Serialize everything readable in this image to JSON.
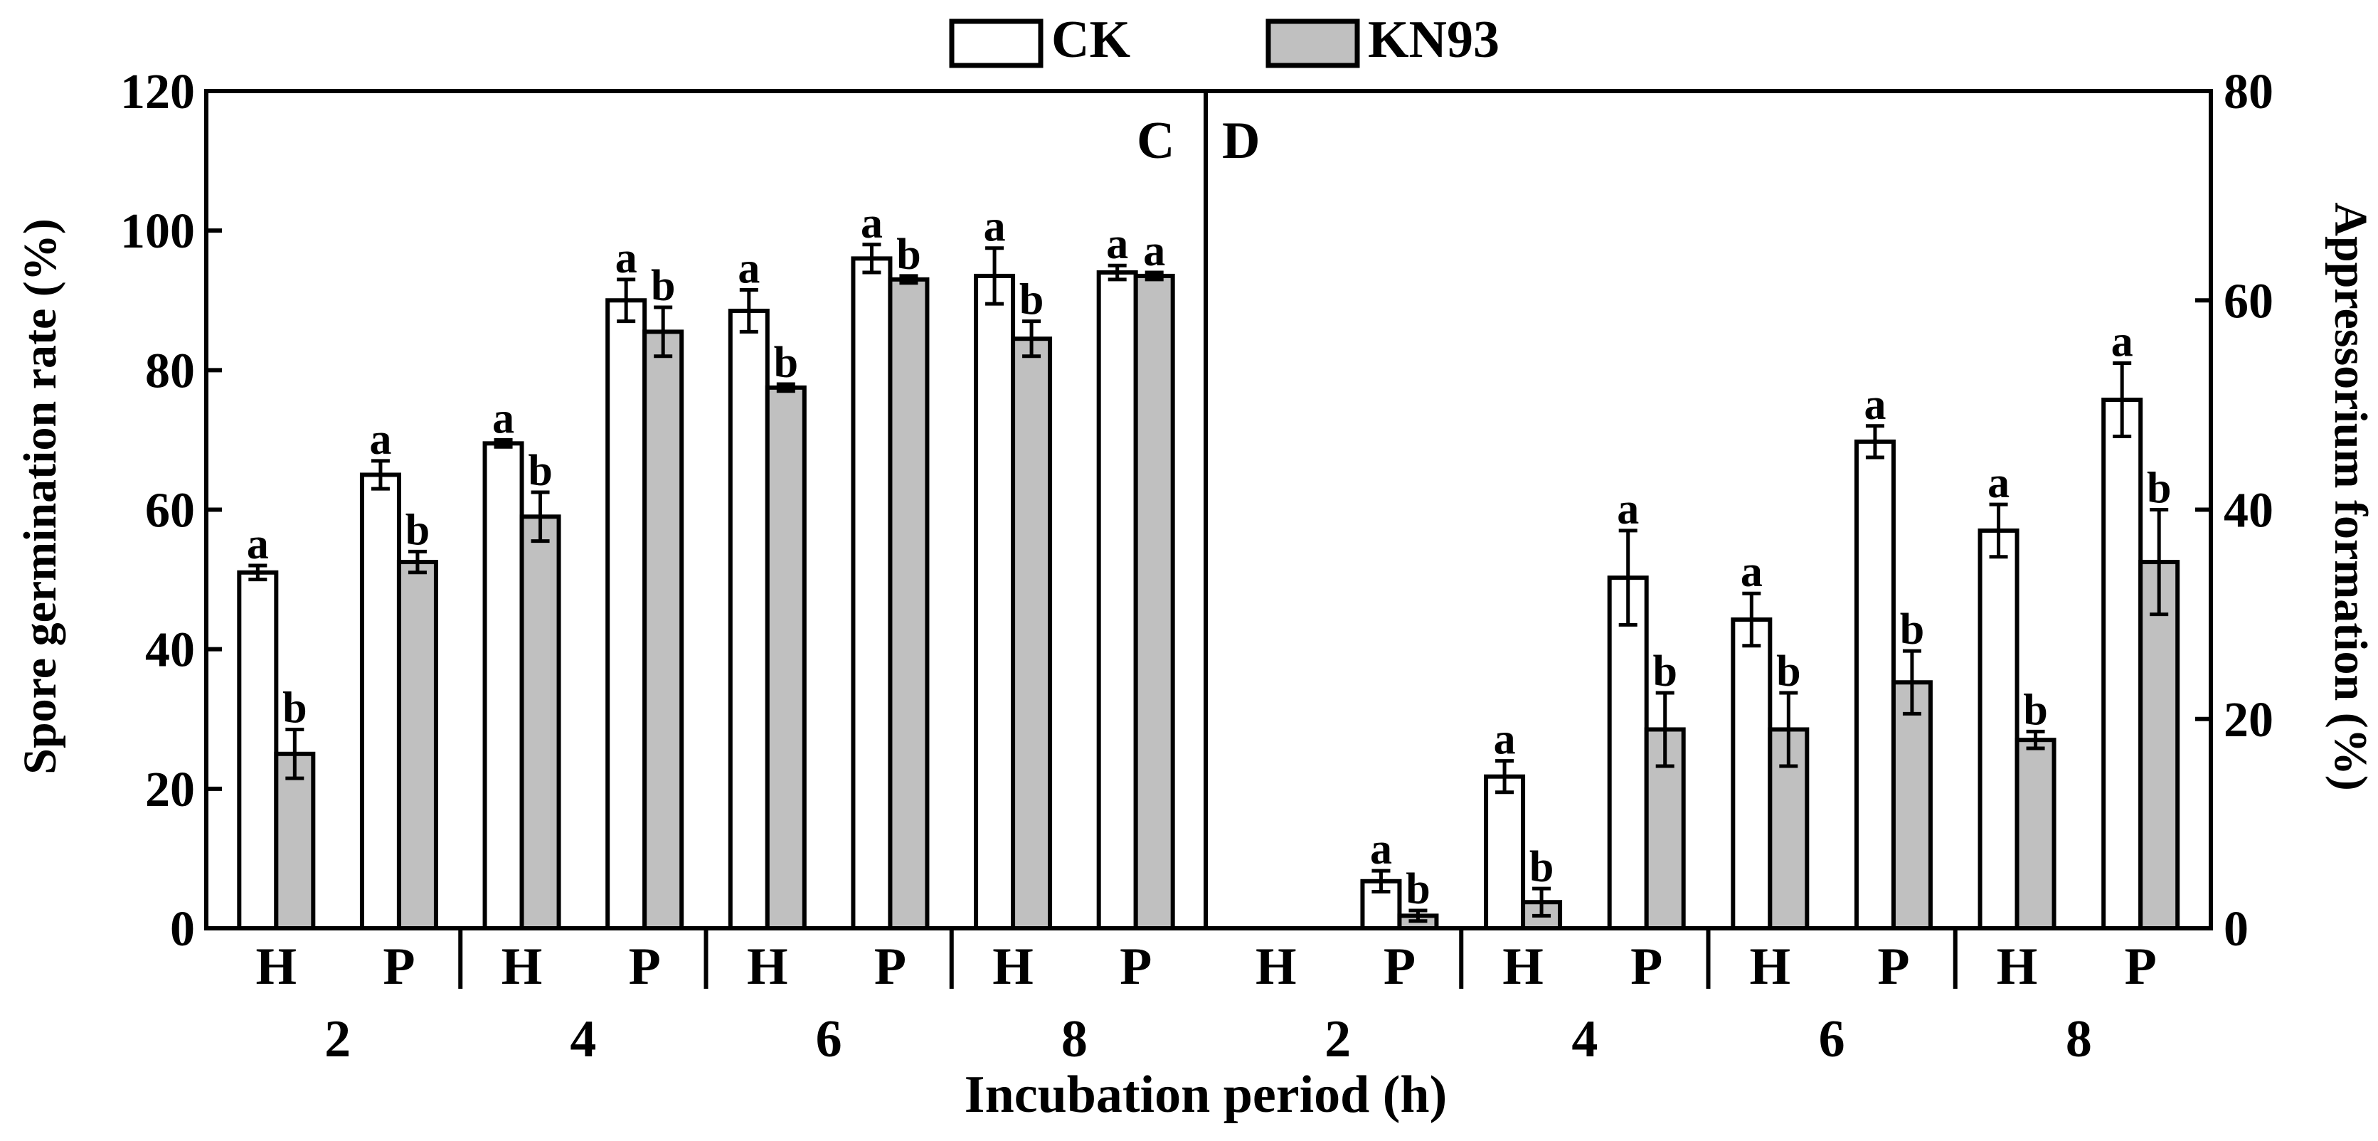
{
  "legend": [
    {
      "name": "CK",
      "color": "#ffffff"
    },
    {
      "name": "KN93",
      "color": "#c0c0c0"
    }
  ],
  "chart_data": [
    {
      "type": "bar",
      "panel_label": "C",
      "ylabel": "Spore germination rate (%)",
      "xlabel": "Incubation period (h)",
      "ylim": [
        0,
        120
      ],
      "yticks": [
        "0",
        "20",
        "40",
        "60",
        "80",
        "100",
        "120"
      ],
      "groups": [
        {
          "period": "2",
          "stages": [
            {
              "stage": "H",
              "bars": [
                {
                  "series": "CK",
                  "value": 51,
                  "err": 1,
                  "letter": "a"
                },
                {
                  "series": "KN93",
                  "value": 25,
                  "err": 3.5,
                  "letter": "b"
                }
              ]
            },
            {
              "stage": "P",
              "bars": [
                {
                  "series": "CK",
                  "value": 65,
                  "err": 2,
                  "letter": "a"
                },
                {
                  "series": "KN93",
                  "value": 52.5,
                  "err": 1.5,
                  "letter": "b"
                }
              ]
            }
          ]
        },
        {
          "period": "4",
          "stages": [
            {
              "stage": "H",
              "bars": [
                {
                  "series": "CK",
                  "value": 69.5,
                  "err": 0.5,
                  "letter": "a"
                },
                {
                  "series": "KN93",
                  "value": 59,
                  "err": 3.5,
                  "letter": "b"
                }
              ]
            },
            {
              "stage": "P",
              "bars": [
                {
                  "series": "CK",
                  "value": 90,
                  "err": 3,
                  "letter": "a"
                },
                {
                  "series": "KN93",
                  "value": 85.5,
                  "err": 3.5,
                  "letter": "b"
                }
              ]
            }
          ]
        },
        {
          "period": "6",
          "stages": [
            {
              "stage": "H",
              "bars": [
                {
                  "series": "CK",
                  "value": 88.5,
                  "err": 3,
                  "letter": "a"
                },
                {
                  "series": "KN93",
                  "value": 77.5,
                  "err": 0.5,
                  "letter": "b"
                }
              ]
            },
            {
              "stage": "P",
              "bars": [
                {
                  "series": "CK",
                  "value": 96,
                  "err": 2,
                  "letter": "a"
                },
                {
                  "series": "KN93",
                  "value": 93,
                  "err": 0.5,
                  "letter": "b"
                }
              ]
            }
          ]
        },
        {
          "period": "8",
          "stages": [
            {
              "stage": "H",
              "bars": [
                {
                  "series": "CK",
                  "value": 93.5,
                  "err": 4,
                  "letter": "a"
                },
                {
                  "series": "KN93",
                  "value": 84.5,
                  "err": 2.5,
                  "letter": "b"
                }
              ]
            },
            {
              "stage": "P",
              "bars": [
                {
                  "series": "CK",
                  "value": 94,
                  "err": 1,
                  "letter": "a"
                },
                {
                  "series": "KN93",
                  "value": 93.5,
                  "err": 0.5,
                  "letter": "a"
                }
              ]
            }
          ]
        }
      ]
    },
    {
      "type": "bar",
      "panel_label": "D",
      "ylabel": "Appressorium formation (%)",
      "xlabel": "Incubation period (h)",
      "ylim": [
        0,
        80
      ],
      "yticks": [
        "0",
        "20",
        "40",
        "60",
        "80"
      ],
      "groups": [
        {
          "period": "2",
          "stages": [
            {
              "stage": "H",
              "bars": []
            },
            {
              "stage": "P",
              "bars": [
                {
                  "series": "CK",
                  "value": 4.5,
                  "err": 1,
                  "letter": "a"
                },
                {
                  "series": "KN93",
                  "value": 1.2,
                  "err": 0.5,
                  "letter": "b"
                }
              ]
            }
          ]
        },
        {
          "period": "4",
          "stages": [
            {
              "stage": "H",
              "bars": [
                {
                  "series": "CK",
                  "value": 14.5,
                  "err": 1.5,
                  "letter": "a"
                },
                {
                  "series": "KN93",
                  "value": 2.5,
                  "err": 1.3,
                  "letter": "b"
                }
              ]
            },
            {
              "stage": "P",
              "bars": [
                {
                  "series": "CK",
                  "value": 33.5,
                  "err": 4.5,
                  "letter": "a"
                },
                {
                  "series": "KN93",
                  "value": 19,
                  "err": 3.5,
                  "letter": "b"
                }
              ]
            }
          ]
        },
        {
          "period": "6",
          "stages": [
            {
              "stage": "H",
              "bars": [
                {
                  "series": "CK",
                  "value": 29.5,
                  "err": 2.5,
                  "letter": "a"
                },
                {
                  "series": "KN93",
                  "value": 19,
                  "err": 3.5,
                  "letter": "b"
                }
              ]
            },
            {
              "stage": "P",
              "bars": [
                {
                  "series": "CK",
                  "value": 46.5,
                  "err": 1.5,
                  "letter": "a"
                },
                {
                  "series": "KN93",
                  "value": 23.5,
                  "err": 3,
                  "letter": "b"
                }
              ]
            }
          ]
        },
        {
          "period": "8",
          "stages": [
            {
              "stage": "H",
              "bars": [
                {
                  "series": "CK",
                  "value": 38,
                  "err": 2.5,
                  "letter": "a"
                },
                {
                  "series": "KN93",
                  "value": 18,
                  "err": 0.8,
                  "letter": "b"
                }
              ]
            },
            {
              "stage": "P",
              "bars": [
                {
                  "series": "CK",
                  "value": 50.5,
                  "err": 3.5,
                  "letter": "a"
                },
                {
                  "series": "KN93",
                  "value": 35,
                  "err": 5,
                  "letter": "b"
                }
              ]
            }
          ]
        }
      ]
    }
  ]
}
